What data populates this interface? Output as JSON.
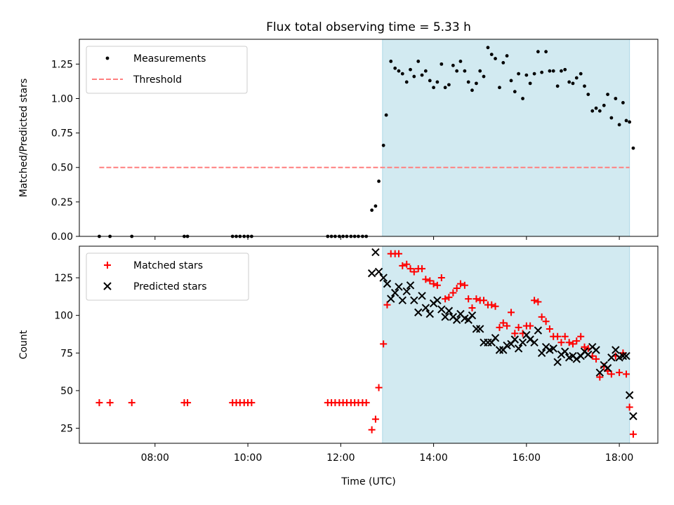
{
  "title": "Flux total observing time = 5.33 h",
  "colors": {
    "shade": "#add8e6",
    "threshold": "#ff7f7f",
    "matched": "#ff0000",
    "predicted": "#000000",
    "measurement": "#000000"
  },
  "chart_data": [
    {
      "type": "scatter",
      "ylabel": "Matched/Predicted stars",
      "xlabel": "",
      "ylim": [
        0,
        1.43
      ],
      "xlim": [
        6.37,
        18.83
      ],
      "yticks": [
        0.0,
        0.25,
        0.5,
        0.75,
        1.0,
        1.25
      ],
      "ytick_labels": [
        "0.00",
        "0.25",
        "0.50",
        "0.75",
        "1.00",
        "1.25"
      ],
      "legend_position": "upper-left",
      "shaded_span": [
        12.9,
        18.22
      ],
      "threshold": {
        "name": "Threshold",
        "y": 0.5,
        "x_start": 6.8,
        "x_end": 18.22
      },
      "series": [
        {
          "name": "Measurements",
          "points": [
            [
              6.8,
              0
            ],
            [
              7.03,
              0
            ],
            [
              7.5,
              0
            ],
            [
              8.63,
              0
            ],
            [
              8.7,
              0
            ],
            [
              9.67,
              0
            ],
            [
              9.75,
              0
            ],
            [
              9.83,
              0
            ],
            [
              9.92,
              0
            ],
            [
              10.0,
              0
            ],
            [
              10.08,
              0
            ],
            [
              11.72,
              0
            ],
            [
              11.8,
              0
            ],
            [
              11.88,
              0
            ],
            [
              11.97,
              0
            ],
            [
              12.05,
              0
            ],
            [
              12.13,
              0
            ],
            [
              12.22,
              0
            ],
            [
              12.3,
              0
            ],
            [
              12.38,
              0
            ],
            [
              12.47,
              0
            ],
            [
              12.55,
              0
            ],
            [
              12.67,
              0.19
            ],
            [
              12.75,
              0.22
            ],
            [
              12.82,
              0.4
            ],
            [
              12.92,
              0.66
            ],
            [
              12.98,
              0.88
            ],
            [
              13.08,
              1.27
            ],
            [
              13.17,
              1.22
            ],
            [
              13.25,
              1.2
            ],
            [
              13.33,
              1.18
            ],
            [
              13.42,
              1.12
            ],
            [
              13.5,
              1.21
            ],
            [
              13.58,
              1.16
            ],
            [
              13.67,
              1.27
            ],
            [
              13.75,
              1.17
            ],
            [
              13.83,
              1.2
            ],
            [
              13.92,
              1.13
            ],
            [
              14.0,
              1.08
            ],
            [
              14.08,
              1.12
            ],
            [
              14.17,
              1.25
            ],
            [
              14.25,
              1.08
            ],
            [
              14.33,
              1.1
            ],
            [
              14.42,
              1.24
            ],
            [
              14.5,
              1.2
            ],
            [
              14.58,
              1.27
            ],
            [
              14.67,
              1.2
            ],
            [
              14.75,
              1.12
            ],
            [
              14.83,
              1.06
            ],
            [
              14.92,
              1.11
            ],
            [
              15.0,
              1.2
            ],
            [
              15.08,
              1.16
            ],
            [
              15.17,
              1.37
            ],
            [
              15.25,
              1.32
            ],
            [
              15.33,
              1.29
            ],
            [
              15.42,
              1.08
            ],
            [
              15.5,
              1.26
            ],
            [
              15.58,
              1.31
            ],
            [
              15.67,
              1.13
            ],
            [
              15.75,
              1.05
            ],
            [
              15.83,
              1.18
            ],
            [
              15.92,
              1.0
            ],
            [
              16.0,
              1.17
            ],
            [
              16.08,
              1.11
            ],
            [
              16.17,
              1.18
            ],
            [
              16.25,
              1.34
            ],
            [
              16.33,
              1.19
            ],
            [
              16.42,
              1.34
            ],
            [
              16.5,
              1.2
            ],
            [
              16.58,
              1.2
            ],
            [
              16.67,
              1.09
            ],
            [
              16.75,
              1.2
            ],
            [
              16.83,
              1.21
            ],
            [
              16.92,
              1.12
            ],
            [
              17.0,
              1.11
            ],
            [
              17.08,
              1.15
            ],
            [
              17.17,
              1.18
            ],
            [
              17.25,
              1.09
            ],
            [
              17.33,
              1.03
            ],
            [
              17.42,
              0.91
            ],
            [
              17.5,
              0.93
            ],
            [
              17.58,
              0.91
            ],
            [
              17.67,
              0.95
            ],
            [
              17.75,
              1.03
            ],
            [
              17.83,
              0.86
            ],
            [
              17.92,
              1.0
            ],
            [
              18.0,
              0.81
            ],
            [
              18.08,
              0.97
            ],
            [
              18.15,
              0.84
            ],
            [
              18.22,
              0.83
            ],
            [
              18.3,
              0.64
            ]
          ]
        }
      ]
    },
    {
      "type": "scatter",
      "ylabel": "Count",
      "xlabel": "Time (UTC)",
      "ylim": [
        15,
        146
      ],
      "xlim": [
        6.37,
        18.83
      ],
      "yticks": [
        25,
        50,
        75,
        100,
        125
      ],
      "ytick_labels": [
        "25",
        "50",
        "75",
        "100",
        "125"
      ],
      "xticks": [
        8,
        10,
        12,
        14,
        16,
        18
      ],
      "xtick_labels": [
        "08:00",
        "10:00",
        "12:00",
        "14:00",
        "16:00",
        "18:00"
      ],
      "legend_position": "upper-left",
      "shaded_span": [
        12.9,
        18.22
      ],
      "series": [
        {
          "name": "Matched stars",
          "marker": "plus",
          "points": [
            [
              6.8,
              42
            ],
            [
              7.03,
              42
            ],
            [
              7.5,
              42
            ],
            [
              8.63,
              42
            ],
            [
              8.7,
              42
            ],
            [
              9.67,
              42
            ],
            [
              9.75,
              42
            ],
            [
              9.83,
              42
            ],
            [
              9.92,
              42
            ],
            [
              10.0,
              42
            ],
            [
              10.08,
              42
            ],
            [
              11.72,
              42
            ],
            [
              11.8,
              42
            ],
            [
              11.88,
              42
            ],
            [
              11.97,
              42
            ],
            [
              12.05,
              42
            ],
            [
              12.13,
              42
            ],
            [
              12.22,
              42
            ],
            [
              12.3,
              42
            ],
            [
              12.38,
              42
            ],
            [
              12.47,
              42
            ],
            [
              12.55,
              42
            ],
            [
              12.67,
              24
            ],
            [
              12.75,
              31
            ],
            [
              12.82,
              52
            ],
            [
              12.92,
              81
            ],
            [
              13.0,
              107
            ],
            [
              13.08,
              141
            ],
            [
              13.17,
              141
            ],
            [
              13.25,
              141
            ],
            [
              13.33,
              133
            ],
            [
              13.42,
              134
            ],
            [
              13.5,
              131
            ],
            [
              13.58,
              129
            ],
            [
              13.67,
              131
            ],
            [
              13.75,
              131
            ],
            [
              13.83,
              124
            ],
            [
              13.92,
              123
            ],
            [
              14.0,
              121
            ],
            [
              14.08,
              120
            ],
            [
              14.17,
              125
            ],
            [
              14.25,
              111
            ],
            [
              14.33,
              112
            ],
            [
              14.42,
              115
            ],
            [
              14.5,
              118
            ],
            [
              14.58,
              121
            ],
            [
              14.67,
              120
            ],
            [
              14.75,
              111
            ],
            [
              14.83,
              105
            ],
            [
              14.92,
              111
            ],
            [
              15.0,
              110
            ],
            [
              15.08,
              110
            ],
            [
              15.17,
              107
            ],
            [
              15.25,
              107
            ],
            [
              15.33,
              106
            ],
            [
              15.42,
              92
            ],
            [
              15.5,
              95
            ],
            [
              15.58,
              93
            ],
            [
              15.67,
              102
            ],
            [
              15.75,
              88
            ],
            [
              15.83,
              92
            ],
            [
              15.92,
              88
            ],
            [
              16.0,
              93
            ],
            [
              16.08,
              93
            ],
            [
              16.17,
              110
            ],
            [
              16.25,
              109
            ],
            [
              16.33,
              99
            ],
            [
              16.42,
              96
            ],
            [
              16.5,
              91
            ],
            [
              16.58,
              86
            ],
            [
              16.67,
              86
            ],
            [
              16.75,
              82
            ],
            [
              16.83,
              86
            ],
            [
              16.92,
              82
            ],
            [
              17.0,
              81
            ],
            [
              17.08,
              83
            ],
            [
              17.17,
              86
            ],
            [
              17.25,
              79
            ],
            [
              17.33,
              78
            ],
            [
              17.42,
              73
            ],
            [
              17.5,
              71
            ],
            [
              17.58,
              59
            ],
            [
              17.67,
              66
            ],
            [
              17.75,
              63
            ],
            [
              17.83,
              61
            ],
            [
              17.92,
              73
            ],
            [
              18.0,
              62
            ],
            [
              18.08,
              75
            ],
            [
              18.15,
              61
            ],
            [
              18.22,
              39
            ],
            [
              18.3,
              21
            ]
          ]
        },
        {
          "name": "Predicted stars",
          "marker": "x",
          "points": [
            [
              12.67,
              128
            ],
            [
              12.75,
              142
            ],
            [
              12.82,
              129
            ],
            [
              12.92,
              125
            ],
            [
              13.0,
              121
            ],
            [
              13.08,
              111
            ],
            [
              13.17,
              115
            ],
            [
              13.25,
              119
            ],
            [
              13.33,
              110
            ],
            [
              13.42,
              116
            ],
            [
              13.5,
              120
            ],
            [
              13.58,
              110
            ],
            [
              13.67,
              102
            ],
            [
              13.75,
              113
            ],
            [
              13.83,
              105
            ],
            [
              13.92,
              101
            ],
            [
              14.0,
              108
            ],
            [
              14.08,
              110
            ],
            [
              14.17,
              104
            ],
            [
              14.25,
              99
            ],
            [
              14.33,
              103
            ],
            [
              14.42,
              99
            ],
            [
              14.5,
              97
            ],
            [
              14.58,
              101
            ],
            [
              14.67,
              98
            ],
            [
              14.75,
              97
            ],
            [
              14.83,
              100
            ],
            [
              14.92,
              91
            ],
            [
              15.0,
              91
            ],
            [
              15.08,
              82
            ],
            [
              15.17,
              82
            ],
            [
              15.25,
              82
            ],
            [
              15.33,
              85
            ],
            [
              15.42,
              77
            ],
            [
              15.5,
              77
            ],
            [
              15.58,
              80
            ],
            [
              15.67,
              81
            ],
            [
              15.75,
              84
            ],
            [
              15.83,
              78
            ],
            [
              15.92,
              82
            ],
            [
              16.0,
              87
            ],
            [
              16.08,
              84
            ],
            [
              16.17,
              82
            ],
            [
              16.25,
              90
            ],
            [
              16.33,
              75
            ],
            [
              16.42,
              79
            ],
            [
              16.5,
              77
            ],
            [
              16.58,
              78
            ],
            [
              16.67,
              69
            ],
            [
              16.75,
              74
            ],
            [
              16.83,
              76
            ],
            [
              16.92,
              72
            ],
            [
              17.0,
              73
            ],
            [
              17.08,
              71
            ],
            [
              17.17,
              73
            ],
            [
              17.25,
              76
            ],
            [
              17.33,
              74
            ],
            [
              17.42,
              79
            ],
            [
              17.5,
              77
            ],
            [
              17.58,
              62
            ],
            [
              17.67,
              67
            ],
            [
              17.75,
              65
            ],
            [
              17.83,
              72
            ],
            [
              17.92,
              77
            ],
            [
              18.0,
              72
            ],
            [
              18.08,
              73
            ],
            [
              18.15,
              73
            ],
            [
              18.22,
              47
            ],
            [
              18.3,
              33
            ]
          ]
        }
      ]
    }
  ]
}
